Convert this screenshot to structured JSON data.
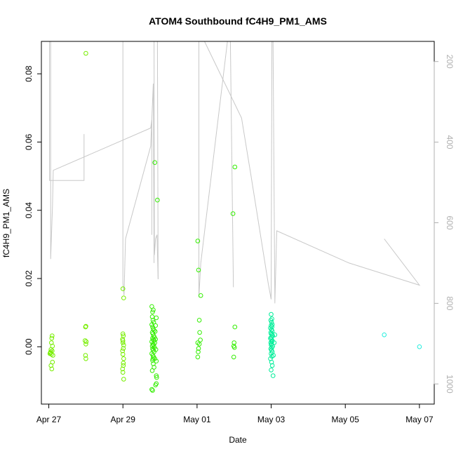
{
  "chart_data": {
    "type": "scatter",
    "title": "ATOM4 Southbound fC4H9_PM1_AMS",
    "xlabel": "Date",
    "ylabel": "fC4H9_PM1_AMS",
    "y2label": "",
    "x_ticks": [
      "Apr 27",
      "Apr 29",
      "May 01",
      "May 03",
      "May 05",
      "May 07"
    ],
    "x_tick_values": [
      0,
      2,
      4,
      6,
      8,
      10
    ],
    "x_range": [
      -0.2,
      10.4
    ],
    "y_ticks": [
      "0.00",
      "0.02",
      "0.04",
      "0.06",
      "0.08"
    ],
    "y_tick_values": [
      0,
      0.02,
      0.04,
      0.06,
      0.08
    ],
    "ylim": [
      -0.0168,
      0.0895
    ],
    "y2_ticks": [
      "200",
      "400",
      "600",
      "800",
      "1000"
    ],
    "y2_tick_values": [
      200,
      400,
      600,
      800,
      1000
    ],
    "y2lim": [
      1050,
      150
    ],
    "y2_reversed": true,
    "grid": false,
    "legend": "none",
    "colors": {
      "axis": "#000000",
      "secondary_axis": "#b0b0b0",
      "secondary_line": "#c8c8c8",
      "point_early": "#77ee00",
      "point_mid": "#33ee00",
      "point_late": "#00ee99",
      "point_latest": "#22eedd"
    },
    "points": [
      {
        "x": 0.05,
        "y": -0.0015
      },
      {
        "x": 0.07,
        "y": -0.0022
      },
      {
        "x": 0.04,
        "y": -0.0018
      },
      {
        "x": 0.06,
        "y": -0.0055
      },
      {
        "x": 0.08,
        "y": -0.0065
      },
      {
        "x": 0.1,
        "y": -0.0045
      },
      {
        "x": 0.09,
        "y": 0.0032
      },
      {
        "x": 0.08,
        "y": 0.0025
      },
      {
        "x": 0.07,
        "y": 0.0012
      },
      {
        "x": 0.06,
        "y": -0.0008
      },
      {
        "x": 0.11,
        "y": -0.0025
      },
      {
        "x": 0.09,
        "y": -0.0012
      },
      {
        "x": 0.1,
        "y": 0.0002
      },
      {
        "x": 0.03,
        "y": -0.002
      },
      {
        "x": 1.0,
        "y": 0.086
      },
      {
        "x": 0.99,
        "y": 0.0058
      },
      {
        "x": 1.0,
        "y": 0.006
      },
      {
        "x": 0.98,
        "y": 0.0018
      },
      {
        "x": 1.0,
        "y": 0.0008
      },
      {
        "x": 0.99,
        "y": -0.0025
      },
      {
        "x": 1.0,
        "y": -0.0035
      },
      {
        "x": 1.01,
        "y": 0.0015
      },
      {
        "x": 2.0,
        "y": 0.017
      },
      {
        "x": 2.02,
        "y": 0.0143
      },
      {
        "x": 2.0,
        "y": 0.0038
      },
      {
        "x": 2.01,
        "y": 0.0032
      },
      {
        "x": 1.99,
        "y": 0.0022
      },
      {
        "x": 2.0,
        "y": 0.0012
      },
      {
        "x": 2.02,
        "y": 0.0005
      },
      {
        "x": 2.01,
        "y": -0.0005
      },
      {
        "x": 1.99,
        "y": -0.0012
      },
      {
        "x": 2.0,
        "y": -0.0022
      },
      {
        "x": 2.02,
        "y": -0.0035
      },
      {
        "x": 2.01,
        "y": -0.0055
      },
      {
        "x": 1.99,
        "y": -0.0065
      },
      {
        "x": 2.0,
        "y": -0.0075
      },
      {
        "x": 2.02,
        "y": -0.0095
      },
      {
        "x": 2.01,
        "y": -0.0048
      },
      {
        "x": 2.0,
        "y": 0.0018
      },
      {
        "x": 2.78,
        "y": 0.0118
      },
      {
        "x": 2.8,
        "y": 0.0102
      },
      {
        "x": 2.82,
        "y": 0.0108
      },
      {
        "x": 2.79,
        "y": 0.0088
      },
      {
        "x": 2.81,
        "y": 0.0078
      },
      {
        "x": 2.83,
        "y": 0.0072
      },
      {
        "x": 2.78,
        "y": 0.0065
      },
      {
        "x": 2.8,
        "y": 0.0058
      },
      {
        "x": 2.82,
        "y": 0.0052
      },
      {
        "x": 2.84,
        "y": 0.0048
      },
      {
        "x": 2.79,
        "y": 0.0042
      },
      {
        "x": 2.81,
        "y": 0.0038
      },
      {
        "x": 2.83,
        "y": 0.0032
      },
      {
        "x": 2.85,
        "y": 0.0028
      },
      {
        "x": 2.8,
        "y": 0.0025
      },
      {
        "x": 2.82,
        "y": 0.0021
      },
      {
        "x": 2.84,
        "y": 0.0018
      },
      {
        "x": 2.78,
        "y": 0.0015
      },
      {
        "x": 2.86,
        "y": 0.0012
      },
      {
        "x": 2.81,
        "y": 0.0008
      },
      {
        "x": 2.83,
        "y": 0.0005
      },
      {
        "x": 2.79,
        "y": 0.0002
      },
      {
        "x": 2.85,
        "y": -0.0002
      },
      {
        "x": 2.8,
        "y": -0.0006
      },
      {
        "x": 2.82,
        "y": -0.001
      },
      {
        "x": 2.84,
        "y": -0.0015
      },
      {
        "x": 2.78,
        "y": -0.002
      },
      {
        "x": 2.81,
        "y": -0.0025
      },
      {
        "x": 2.83,
        "y": -0.003
      },
      {
        "x": 2.86,
        "y": -0.0035
      },
      {
        "x": 2.8,
        "y": -0.004
      },
      {
        "x": 2.82,
        "y": -0.005
      },
      {
        "x": 2.84,
        "y": -0.006
      },
      {
        "x": 2.79,
        "y": -0.007
      },
      {
        "x": 2.81,
        "y": -0.0035
      },
      {
        "x": 2.87,
        "y": 0.0045
      },
      {
        "x": 2.88,
        "y": 0.0062
      },
      {
        "x": 2.9,
        "y": 0.0085
      },
      {
        "x": 2.88,
        "y": 0.0022
      },
      {
        "x": 2.89,
        "y": -0.0008
      },
      {
        "x": 2.9,
        "y": -0.0042
      },
      {
        "x": 2.8,
        "y": -0.0128
      },
      {
        "x": 2.78,
        "y": -0.0125
      },
      {
        "x": 2.88,
        "y": -0.0112
      },
      {
        "x": 2.9,
        "y": -0.0108
      },
      {
        "x": 2.91,
        "y": -0.009
      },
      {
        "x": 2.9,
        "y": -0.0085
      },
      {
        "x": 2.86,
        "y": 0.054
      },
      {
        "x": 2.93,
        "y": 0.043
      },
      {
        "x": 4.02,
        "y": 0.031
      },
      {
        "x": 4.04,
        "y": 0.0225
      },
      {
        "x": 4.1,
        "y": 0.015
      },
      {
        "x": 4.06,
        "y": 0.0078
      },
      {
        "x": 4.07,
        "y": 0.0042
      },
      {
        "x": 4.02,
        "y": 0.0012
      },
      {
        "x": 4.06,
        "y": 0.0008
      },
      {
        "x": 4.04,
        "y": -0.0005
      },
      {
        "x": 4.03,
        "y": -0.0015
      },
      {
        "x": 4.02,
        "y": -0.003
      },
      {
        "x": 4.09,
        "y": 0.002
      },
      {
        "x": 4.97,
        "y": 0.039
      },
      {
        "x": 5.02,
        "y": 0.0527
      },
      {
        "x": 5.02,
        "y": 0.0058
      },
      {
        "x": 5.0,
        "y": 0.0012
      },
      {
        "x": 4.99,
        "y": 0.0002
      },
      {
        "x": 5.01,
        "y": -0.0002
      },
      {
        "x": 4.99,
        "y": -0.003
      },
      {
        "x": 6.0,
        "y": 0.0095
      },
      {
        "x": 6.02,
        "y": 0.0082
      },
      {
        "x": 5.99,
        "y": 0.0078
      },
      {
        "x": 6.01,
        "y": 0.0072
      },
      {
        "x": 6.03,
        "y": 0.0065
      },
      {
        "x": 6.0,
        "y": 0.0062
      },
      {
        "x": 6.02,
        "y": 0.0058
      },
      {
        "x": 5.98,
        "y": 0.0055
      },
      {
        "x": 6.01,
        "y": 0.005
      },
      {
        "x": 6.03,
        "y": 0.0046
      },
      {
        "x": 5.99,
        "y": 0.0042
      },
      {
        "x": 6.0,
        "y": 0.0038
      },
      {
        "x": 6.02,
        "y": 0.0035
      },
      {
        "x": 6.04,
        "y": 0.0032
      },
      {
        "x": 6.01,
        "y": 0.0028
      },
      {
        "x": 5.98,
        "y": 0.0025
      },
      {
        "x": 6.0,
        "y": 0.0022
      },
      {
        "x": 6.03,
        "y": 0.0018
      },
      {
        "x": 6.02,
        "y": 0.0015
      },
      {
        "x": 5.99,
        "y": 0.0012
      },
      {
        "x": 6.01,
        "y": 0.0008
      },
      {
        "x": 6.0,
        "y": 0.0005
      },
      {
        "x": 6.04,
        "y": 0.0002
      },
      {
        "x": 6.02,
        "y": -0.0002
      },
      {
        "x": 5.99,
        "y": -0.0006
      },
      {
        "x": 6.01,
        "y": -0.001
      },
      {
        "x": 6.03,
        "y": -0.0015
      },
      {
        "x": 6.0,
        "y": -0.002
      },
      {
        "x": 6.02,
        "y": -0.0028
      },
      {
        "x": 5.98,
        "y": -0.0035
      },
      {
        "x": 6.01,
        "y": -0.0045
      },
      {
        "x": 6.03,
        "y": -0.0055
      },
      {
        "x": 6.0,
        "y": -0.0068
      },
      {
        "x": 6.05,
        "y": -0.0085
      },
      {
        "x": 6.1,
        "y": 0.0035
      },
      {
        "x": 6.08,
        "y": 0.0012
      },
      {
        "x": 6.06,
        "y": -0.0025
      },
      {
        "x": 9.05,
        "y": 0.0035
      },
      {
        "x": 10.0,
        "y": 0.0
      }
    ],
    "secondary_series": {
      "name": "",
      "axis": "right",
      "segments": [
        [
          [
            0.02,
            150
          ],
          [
            0.02,
            495
          ],
          [
            0.95,
            495
          ],
          [
            0.95,
            380
          ]
        ],
        [
          [
            0.05,
            150
          ],
          [
            0.05,
            690
          ],
          [
            0.1,
            560
          ],
          [
            0.12,
            470
          ],
          [
            2.75,
            365
          ],
          [
            2.78,
            345
          ],
          [
            2.78,
            630
          ]
        ],
        [
          [
            2.0,
            150
          ],
          [
            2.0,
            750
          ],
          [
            2.03,
            780
          ],
          [
            2.07,
            640
          ],
          [
            2.75,
            410
          ],
          [
            2.82,
            255
          ],
          [
            2.84,
            700
          ]
        ],
        [
          [
            2.84,
            150
          ],
          [
            2.85,
            680
          ],
          [
            2.88,
            640
          ],
          [
            2.92,
            630
          ],
          [
            2.95,
            740
          ]
        ],
        [
          [
            2.93,
            150
          ],
          [
            2.95,
            740
          ]
        ],
        [
          [
            4.05,
            150
          ],
          [
            4.05,
            785
          ],
          [
            4.1,
            700
          ],
          [
            4.82,
            150
          ]
        ],
        [
          [
            4.2,
            150
          ],
          [
            5.2,
            340
          ],
          [
            5.45,
            480
          ],
          [
            5.92,
            750
          ],
          [
            6.0,
            790
          ],
          [
            6.02,
            150
          ]
        ],
        [
          [
            4.9,
            150
          ],
          [
            4.98,
            760
          ]
        ],
        [
          [
            6.05,
            150
          ],
          [
            6.1,
            800
          ],
          [
            6.15,
            620
          ],
          [
            8.1,
            700
          ],
          [
            10.0,
            755
          ],
          [
            9.05,
            640
          ]
        ]
      ]
    }
  }
}
